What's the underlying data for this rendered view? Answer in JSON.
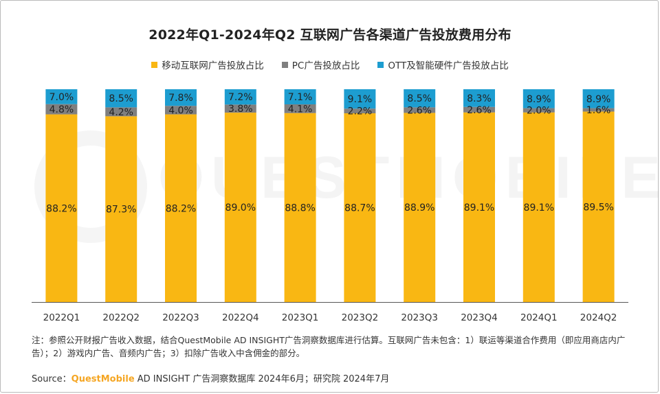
{
  "chart_data": {
    "type": "bar",
    "stacked": true,
    "title": "2022年Q1-2024年Q2 互联网广告各渠道广告投放费用分布",
    "categories": [
      "2022Q1",
      "2022Q2",
      "2022Q3",
      "2022Q4",
      "2023Q1",
      "2023Q2",
      "2023Q3",
      "2023Q4",
      "2024Q1",
      "2024Q2"
    ],
    "series": [
      {
        "name": "移动互联网广告投放占比",
        "color": "#f9b713",
        "values": [
          88.2,
          87.3,
          88.2,
          89.0,
          88.8,
          88.7,
          88.9,
          89.1,
          89.1,
          89.5
        ],
        "labels": [
          "88.2%",
          "87.3%",
          "88.2%",
          "89.0%",
          "88.8%",
          "88.7%",
          "88.9%",
          "89.1%",
          "89.1%",
          "89.5%"
        ]
      },
      {
        "name": "PC广告投放占比",
        "color": "#7f7f7f",
        "values": [
          4.8,
          4.2,
          4.0,
          3.8,
          4.1,
          2.2,
          2.6,
          2.6,
          2.0,
          1.6
        ],
        "labels": [
          "4.8%",
          "4.2%",
          "4.0%",
          "3.8%",
          "4.1%",
          "2.2%",
          "2.6%",
          "2.6%",
          "2.0%",
          "1.6%"
        ]
      },
      {
        "name": "OTT及智能硬件广告投放占比",
        "color": "#1d9dd0",
        "values": [
          7.0,
          8.5,
          7.8,
          7.2,
          7.1,
          9.1,
          8.5,
          8.3,
          8.9,
          8.9
        ],
        "labels": [
          "7.0%",
          "8.5%",
          "7.8%",
          "7.2%",
          "7.1%",
          "9.1%",
          "8.5%",
          "8.3%",
          "8.9%",
          "8.9%"
        ]
      }
    ],
    "ylim": [
      0,
      100
    ],
    "xlabel": "",
    "ylabel": "",
    "legend_position": "top-center",
    "grid": false
  },
  "watermark": {
    "text": "QUESTMOBILE"
  },
  "note": "注：参照公开财报广告收入数据，结合QuestMobile AD INSIGHT广告洞察数据库进行估算。互联网广告未包含：1）联运等渠道合作费用（即应用商店内广告）；2）游戏内广告、音频内广告；3）扣除广告收入中含佣金的部分。",
  "source": {
    "prefix": "Source：",
    "brand": "QuestMobile",
    "rest": " AD INSIGHT 广告洞察数据库 2024年6月；研究院 2024年7月"
  }
}
